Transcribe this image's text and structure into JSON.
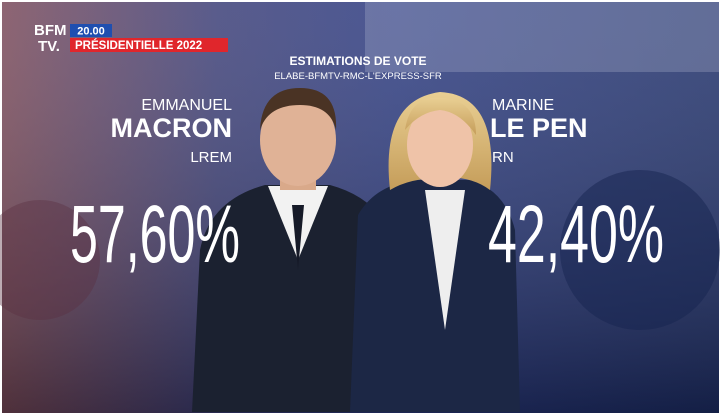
{
  "header": {
    "logo": [
      "BFM",
      "TV."
    ],
    "time": "20.00",
    "program": "PRÉSIDENTIELLE 2022"
  },
  "title": "ESTIMATIONS DE VOTE",
  "source": "ELABE-BFMTV-RMC-L'EXPRESS-SFR",
  "candidates": [
    {
      "first_name": "EMMANUEL",
      "last_name": "MACRON",
      "party": "LREM",
      "score": "57,60%"
    },
    {
      "first_name": "MARINE",
      "last_name": "LE PEN",
      "party": "RN",
      "score": "42,40%"
    }
  ]
}
